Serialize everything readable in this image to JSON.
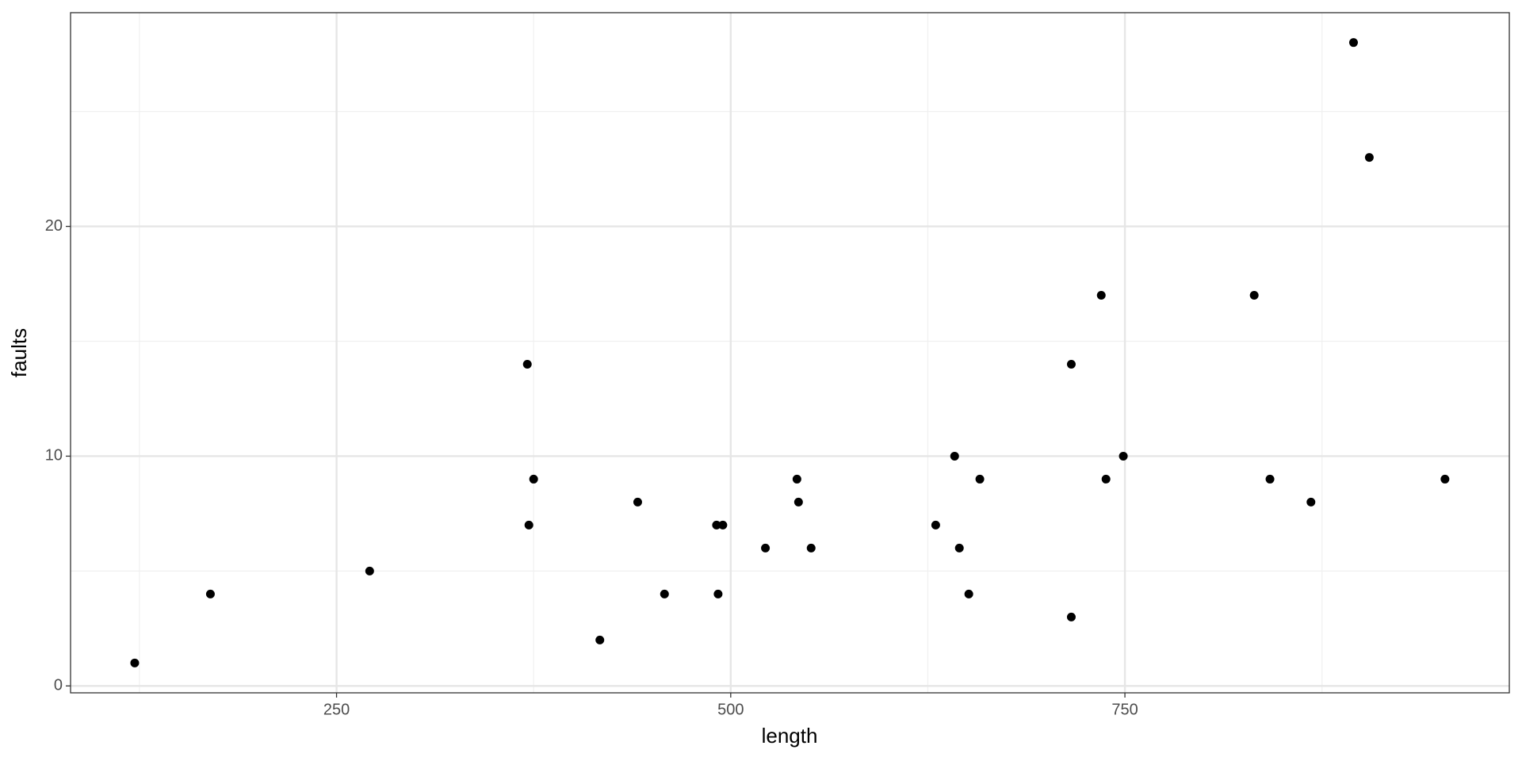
{
  "chart_data": {
    "type": "scatter",
    "x_label": "length",
    "y_label": "faults",
    "color": "#000000",
    "grid": true,
    "x": [
      122,
      170,
      271,
      371,
      375,
      372,
      417,
      441,
      458,
      491,
      495,
      492,
      522,
      542,
      543,
      551,
      630,
      642,
      645,
      651,
      658,
      716,
      716,
      735,
      738,
      749,
      832,
      842,
      868,
      895,
      905,
      953
    ],
    "y": [
      1,
      4,
      5,
      14,
      9,
      7,
      2,
      8,
      4,
      7,
      7,
      4,
      6,
      9,
      8,
      6,
      7,
      10,
      6,
      4,
      9,
      14,
      3,
      17,
      9,
      10,
      17,
      9,
      8,
      28,
      23,
      9
    ],
    "xlim": [
      81.3,
      993.8
    ],
    "xticks": [
      250,
      500,
      750
    ],
    "ylim": [
      -0.3,
      29.3
    ],
    "yticks": [
      0,
      10,
      20
    ]
  }
}
